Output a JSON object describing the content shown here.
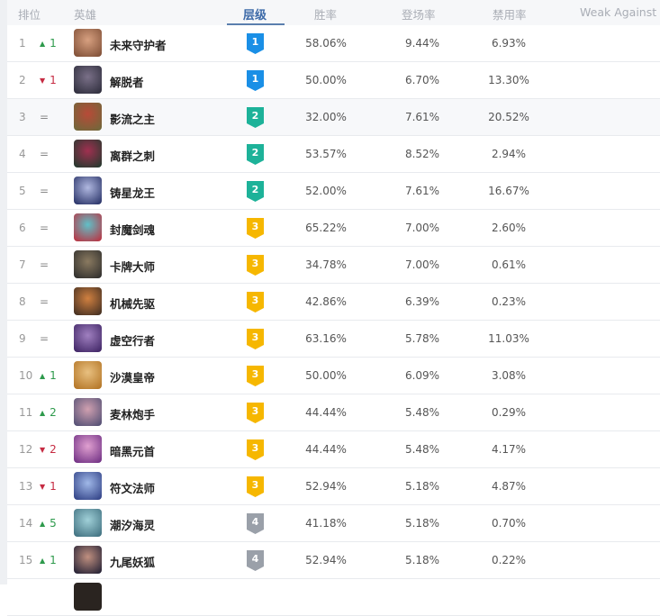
{
  "header": {
    "rank": "排位",
    "hero": "英雄",
    "tier": "层级",
    "win_rate": "胜率",
    "pick_rate": "登场率",
    "ban_rate": "禁用率",
    "weak_against": "Weak Against"
  },
  "tier_colors": {
    "1": "#1a8fe6",
    "2": "#1db299",
    "3": "#f6b700",
    "4": "#9aa0a9"
  },
  "rows": [
    {
      "rank": "1",
      "trend": "up",
      "change": "1",
      "name": "未来守护者",
      "tier": "1",
      "win": "58.06%",
      "pick": "9.44%",
      "ban": "6.93%"
    },
    {
      "rank": "2",
      "trend": "down",
      "change": "1",
      "name": "解脱者",
      "tier": "1",
      "win": "50.00%",
      "pick": "6.70%",
      "ban": "13.30%"
    },
    {
      "rank": "3",
      "trend": "same",
      "change": "=",
      "name": "影流之主",
      "tier": "2",
      "win": "32.00%",
      "pick": "7.61%",
      "ban": "20.52%"
    },
    {
      "rank": "4",
      "trend": "same",
      "change": "=",
      "name": "离群之刺",
      "tier": "2",
      "win": "53.57%",
      "pick": "8.52%",
      "ban": "2.94%"
    },
    {
      "rank": "5",
      "trend": "same",
      "change": "=",
      "name": "铸星龙王",
      "tier": "2",
      "win": "52.00%",
      "pick": "7.61%",
      "ban": "16.67%"
    },
    {
      "rank": "6",
      "trend": "same",
      "change": "=",
      "name": "封魔剑魂",
      "tier": "3",
      "win": "65.22%",
      "pick": "7.00%",
      "ban": "2.60%"
    },
    {
      "rank": "7",
      "trend": "same",
      "change": "=",
      "name": "卡牌大师",
      "tier": "3",
      "win": "34.78%",
      "pick": "7.00%",
      "ban": "0.61%"
    },
    {
      "rank": "8",
      "trend": "same",
      "change": "=",
      "name": "机械先驱",
      "tier": "3",
      "win": "42.86%",
      "pick": "6.39%",
      "ban": "0.23%"
    },
    {
      "rank": "9",
      "trend": "same",
      "change": "=",
      "name": "虚空行者",
      "tier": "3",
      "win": "63.16%",
      "pick": "5.78%",
      "ban": "11.03%"
    },
    {
      "rank": "10",
      "trend": "up",
      "change": "1",
      "name": "沙漠皇帝",
      "tier": "3",
      "win": "50.00%",
      "pick": "6.09%",
      "ban": "3.08%"
    },
    {
      "rank": "11",
      "trend": "up",
      "change": "2",
      "name": "麦林炮手",
      "tier": "3",
      "win": "44.44%",
      "pick": "5.48%",
      "ban": "0.29%"
    },
    {
      "rank": "12",
      "trend": "down",
      "change": "2",
      "name": "暗黑元首",
      "tier": "3",
      "win": "44.44%",
      "pick": "5.48%",
      "ban": "4.17%"
    },
    {
      "rank": "13",
      "trend": "down",
      "change": "1",
      "name": "符文法师",
      "tier": "3",
      "win": "52.94%",
      "pick": "5.18%",
      "ban": "4.87%"
    },
    {
      "rank": "14",
      "trend": "up",
      "change": "5",
      "name": "潮汐海灵",
      "tier": "4",
      "win": "41.18%",
      "pick": "5.18%",
      "ban": "0.70%"
    },
    {
      "rank": "15",
      "trend": "up",
      "change": "1",
      "name": "九尾妖狐",
      "tier": "4",
      "win": "52.94%",
      "pick": "5.18%",
      "ban": "0.22%"
    }
  ]
}
